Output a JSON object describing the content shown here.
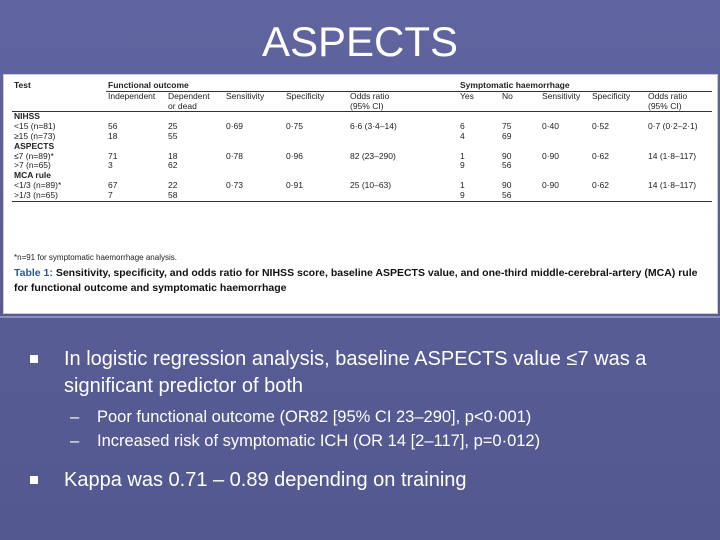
{
  "slide": {
    "title": "ASPECTS",
    "accent": "#5a5e96"
  },
  "table": {
    "headers": {
      "test": "Test",
      "functional": "Functional outcome",
      "symptomatic": "Symptomatic haemorrhage",
      "independent": "Independent",
      "dependent": [
        "Dependent",
        "or dead"
      ],
      "sensitivity": "Sensitivity",
      "specificity": "Specificity",
      "odds": [
        "Odds ratio",
        "(95% CI)"
      ],
      "yes": "Yes",
      "no": "No",
      "sensitivity2": "Sensitivity",
      "specificity2": "Specificity",
      "odds2": [
        "Odds ratio",
        "(95% CI)"
      ]
    },
    "sections": [
      {
        "label": "NIHSS",
        "rows": [
          {
            "test": "<15 (n=81)",
            "ind": "56",
            "dep": "25",
            "sens": "0·69",
            "spec": "0·75",
            "or": "6·6 (3·4–14)",
            "yes": "6",
            "no": "75",
            "sens2": "0·40",
            "spec2": "0·52",
            "or2": "0·7 (0·2–2·1)"
          },
          {
            "test": "≥15 (n=73)",
            "ind": "18",
            "dep": "55",
            "sens": "",
            "spec": "",
            "or": "",
            "yes": "4",
            "no": "69",
            "sens2": "",
            "spec2": "",
            "or2": ""
          }
        ]
      },
      {
        "label": "ASPECTS",
        "rows": [
          {
            "test": "≤7 (n=89)*",
            "ind": "71",
            "dep": "18",
            "sens": "0·78",
            "spec": "0·96",
            "or": "82 (23–290)",
            "yes": "1",
            "no": "90",
            "sens2": "0·90",
            "spec2": "0·62",
            "or2": "14 (1·8–117)"
          },
          {
            "test": ">7 (n=65)",
            "ind": "3",
            "dep": "62",
            "sens": "",
            "spec": "",
            "or": "",
            "yes": "9",
            "no": "56",
            "sens2": "",
            "spec2": "",
            "or2": ""
          }
        ]
      },
      {
        "label": "MCA rule",
        "rows": [
          {
            "test": "<1/3 (n=89)*",
            "ind": "67",
            "dep": "22",
            "sens": "0·73",
            "spec": "0·91",
            "or": "25 (10–63)",
            "yes": "1",
            "no": "90",
            "sens2": "0·90",
            "spec2": "0·62",
            "or2": "14 (1·8–117)"
          },
          {
            "test": ">1/3 (n=65)",
            "ind": "7",
            "dep": "58",
            "sens": "",
            "spec": "",
            "or": "",
            "yes": "9",
            "no": "56",
            "sens2": "",
            "spec2": "",
            "or2": ""
          }
        ]
      }
    ],
    "footnote": "*n=91 for symptomatic haemorrhage analysis.",
    "caption_label": "Table 1:",
    "caption_text": " Sensitivity, specificity, and odds ratio for NIHSS score, baseline ASPECTS value, and one-third middle-cerebral-artery (MCA) rule for functional outcome and symptomatic haemorrhage"
  },
  "bullets": [
    {
      "text": "In logistic regression analysis, baseline ASPECTS value ≤7 was a significant predictor of both"
    },
    {
      "text": "Kappa was 0.71 – 0.89 depending on training"
    }
  ],
  "subbullets": [
    {
      "dash": "–",
      "text": "Poor functional outcome (OR82 [95% CI 23–290], p<0·001)"
    },
    {
      "dash": "–",
      "text": "Increased risk of symptomatic ICH (OR 14 [2–117], p=0·012)"
    }
  ]
}
